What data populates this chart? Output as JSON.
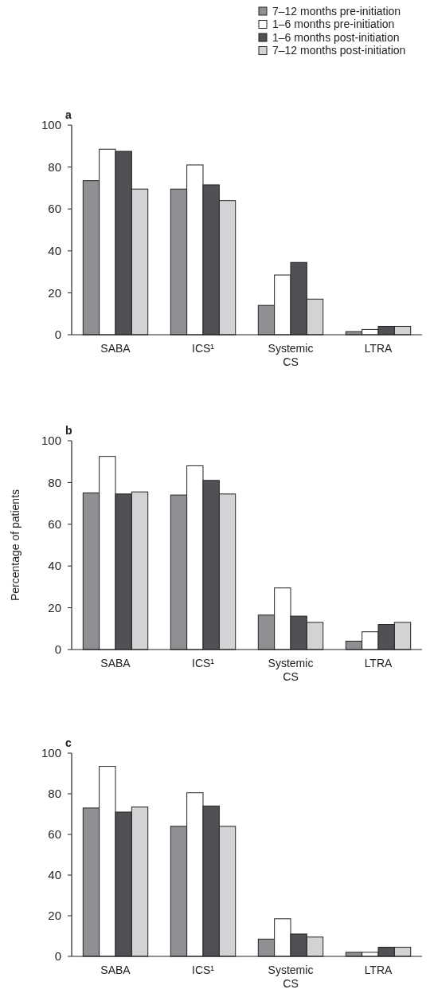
{
  "chart_data": [
    {
      "type": "bar",
      "title": "a",
      "categories": [
        "SABA",
        "ICS¹",
        "Systemic CS",
        "LTRA"
      ],
      "ylim": [
        0,
        100
      ],
      "yticks": [
        0,
        20,
        40,
        60,
        80,
        100
      ],
      "legend": "top right",
      "grid": false,
      "series": [
        {
          "name": "7–12 months pre-initiation",
          "color": "#8f9093",
          "values": [
            73.5,
            69.5,
            14,
            1.5
          ]
        },
        {
          "name": "1–6 months pre-initiation",
          "color": "#ffffff",
          "values": [
            88.5,
            81,
            28.5,
            2.5
          ]
        },
        {
          "name": "1–6 months post-initiation",
          "color": "#505154",
          "values": [
            87.5,
            71.5,
            34.5,
            4
          ]
        },
        {
          "name": "7–12 months post-initiation",
          "color": "#d2d3d5",
          "values": [
            69.5,
            64,
            17,
            4
          ]
        }
      ]
    },
    {
      "type": "bar",
      "title": "b",
      "ylabel": "Percentage of patients",
      "categories": [
        "SABA",
        "ICS¹",
        "Systemic CS",
        "LTRA"
      ],
      "ylim": [
        0,
        100
      ],
      "yticks": [
        0,
        20,
        40,
        60,
        80,
        100
      ],
      "legend": false,
      "grid": false,
      "series": [
        {
          "color": "#8f9093",
          "values": [
            75,
            74,
            16.5,
            4
          ]
        },
        {
          "color": "#ffffff",
          "values": [
            92.5,
            88,
            29.5,
            8.5
          ]
        },
        {
          "color": "#505154",
          "values": [
            74.5,
            81,
            16,
            12
          ]
        },
        {
          "color": "#d2d3d5",
          "values": [
            75.5,
            74.5,
            13,
            13
          ]
        }
      ]
    },
    {
      "type": "bar",
      "title": "c",
      "categories": [
        "SABA",
        "ICS¹",
        "Systemic CS",
        "LTRA"
      ],
      "ylim": [
        0,
        100
      ],
      "yticks": [
        0,
        20,
        40,
        60,
        80,
        100
      ],
      "legend": false,
      "grid": false,
      "series": [
        {
          "color": "#8f9093",
          "values": [
            73,
            64,
            8.5,
            2
          ]
        },
        {
          "color": "#ffffff",
          "values": [
            93.5,
            80.5,
            18.5,
            2
          ]
        },
        {
          "color": "#505154",
          "values": [
            71,
            74,
            11,
            4.5
          ]
        },
        {
          "color": "#d2d3d5",
          "values": [
            73.5,
            64,
            9.5,
            4.5
          ]
        }
      ]
    }
  ]
}
